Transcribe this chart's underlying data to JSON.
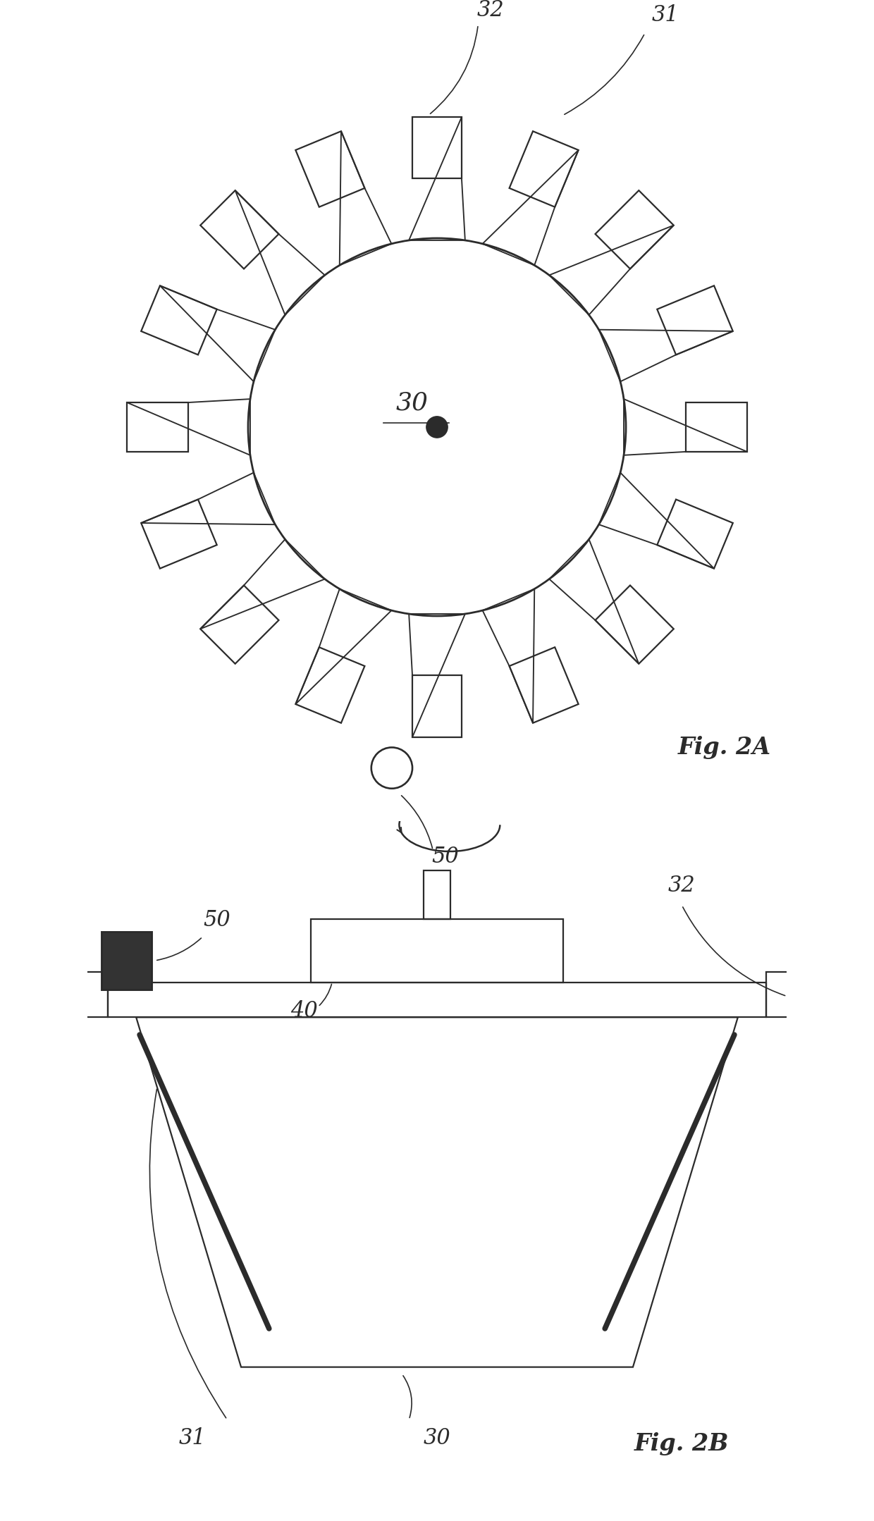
{
  "fig_width": 12.4,
  "fig_height": 21.58,
  "bg_color": "#ffffff",
  "line_color": "#2b2b2b",
  "fig2a_title": "Fig. 2A",
  "fig2b_title": "Fig. 2B",
  "label_30": "30",
  "label_31": "31",
  "label_32": "32",
  "label_40": "40",
  "label_50": "50",
  "num_teeth": 16
}
